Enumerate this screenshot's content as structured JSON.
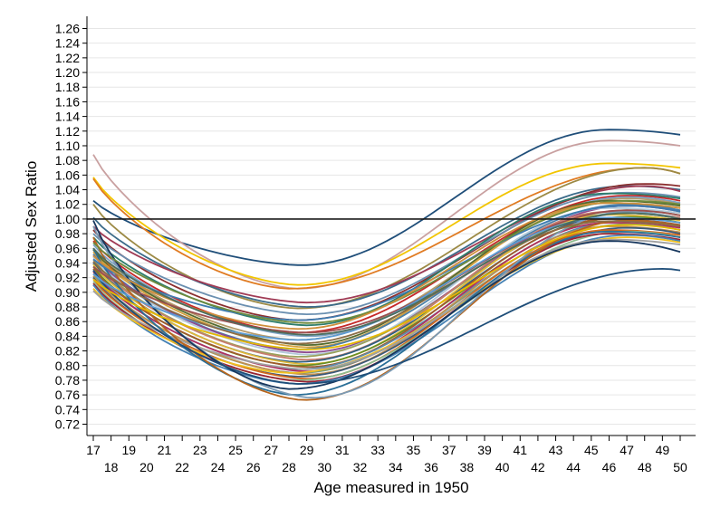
{
  "chart_data": {
    "type": "line",
    "title": "",
    "xlabel": "Age measured in 1950",
    "ylabel": "Adjusted Sex Ratio",
    "xlim": [
      17,
      50
    ],
    "ylim": [
      0.72,
      1.26
    ],
    "x_ticks": [
      17,
      18,
      19,
      20,
      21,
      22,
      23,
      24,
      25,
      26,
      27,
      28,
      29,
      30,
      31,
      32,
      33,
      34,
      35,
      36,
      37,
      38,
      39,
      40,
      41,
      42,
      43,
      44,
      45,
      46,
      47,
      48,
      49,
      50
    ],
    "x_tick_labels": [
      "17",
      "18",
      "19",
      "20",
      "21",
      "22",
      "23",
      "24",
      "25",
      "26",
      "27",
      "28",
      "29",
      "30",
      "31",
      "32",
      "33",
      "34",
      "35",
      "36",
      "37",
      "38",
      "39",
      "40",
      "41",
      "42",
      "43",
      "44",
      "45",
      "46",
      "47",
      "48",
      "49",
      "50"
    ],
    "y_ticks": [
      0.72,
      0.74,
      0.76,
      0.78,
      0.8,
      0.82,
      0.84,
      0.86,
      0.88,
      0.9,
      0.92,
      0.94,
      0.96,
      0.98,
      1.0,
      1.02,
      1.04,
      1.06,
      1.08,
      1.1,
      1.12,
      1.14,
      1.16,
      1.18,
      1.2,
      1.22,
      1.24,
      1.26
    ],
    "y_tick_labels": [
      "0.72",
      "0.74",
      "0.76",
      "0.78",
      "0.80",
      "0.82",
      "0.84",
      "0.86",
      "0.88",
      "0.90",
      "0.92",
      "0.94",
      "0.96",
      "0.98",
      "1.00",
      "1.02",
      "1.04",
      "1.06",
      "1.08",
      "1.10",
      "1.12",
      "1.14",
      "1.16",
      "1.18",
      "1.20",
      "1.22",
      "1.24",
      "1.26"
    ],
    "reference_line": 1.0,
    "grid": "horizontal",
    "legend": "none",
    "series_count": 48,
    "series_params": [
      {
        "start": 1.025,
        "min": 0.937,
        "min_age": 28.7,
        "end": 1.115,
        "peak": 1.122,
        "peak_age": 46,
        "color": "#1f4e79"
      },
      {
        "start": 1.088,
        "min": 0.905,
        "min_age": 28.5,
        "end": 1.1,
        "peak": 1.107,
        "peak_age": 46,
        "color": "#c9a0a0"
      },
      {
        "start": 1.057,
        "min": 0.91,
        "min_age": 28.5,
        "end": 1.07,
        "peak": 1.076,
        "peak_age": 46,
        "color": "#f2c500"
      },
      {
        "start": 1.055,
        "min": 0.905,
        "min_age": 28.0,
        "end": 1.062,
        "peak": 1.07,
        "peak_age": 48,
        "color": "#e07b22"
      },
      {
        "start": 1.02,
        "min": 0.878,
        "min_age": 28.5,
        "end": 1.062,
        "peak": 1.07,
        "peak_age": 48,
        "color": "#9c8a45"
      },
      {
        "start": 1.002,
        "min": 0.88,
        "min_age": 29.0,
        "end": 1.04,
        "peak": 1.045,
        "peak_age": 47,
        "color": "#3b6b8a"
      },
      {
        "start": 0.99,
        "min": 0.886,
        "min_age": 29.0,
        "end": 1.038,
        "peak": 1.045,
        "peak_age": 48,
        "color": "#a03b55"
      },
      {
        "start": 0.985,
        "min": 0.862,
        "min_age": 28.5,
        "end": 1.045,
        "peak": 1.048,
        "peak_age": 48,
        "color": "#8b2f2f"
      },
      {
        "start": 0.98,
        "min": 0.87,
        "min_age": 29.0,
        "end": 1.03,
        "peak": 1.036,
        "peak_age": 47,
        "color": "#6a8fb0"
      },
      {
        "start": 0.975,
        "min": 0.855,
        "min_age": 29.0,
        "end": 1.028,
        "peak": 1.035,
        "peak_age": 46,
        "color": "#2e7d6b"
      },
      {
        "start": 0.97,
        "min": 0.845,
        "min_age": 28.5,
        "end": 1.025,
        "peak": 1.032,
        "peak_age": 47,
        "color": "#c62828"
      },
      {
        "start": 0.965,
        "min": 0.84,
        "min_age": 29.0,
        "end": 1.022,
        "peak": 1.03,
        "peak_age": 47,
        "color": "#7da3c5"
      },
      {
        "start": 0.96,
        "min": 0.835,
        "min_age": 28.5,
        "end": 1.02,
        "peak": 1.028,
        "peak_age": 47,
        "color": "#b59a6a"
      },
      {
        "start": 0.958,
        "min": 0.828,
        "min_age": 29.0,
        "end": 1.018,
        "peak": 1.025,
        "peak_age": 46,
        "color": "#556b2f"
      },
      {
        "start": 0.955,
        "min": 0.825,
        "min_age": 29.0,
        "end": 1.015,
        "peak": 1.022,
        "peak_age": 46,
        "color": "#d4a03a"
      },
      {
        "start": 0.952,
        "min": 0.822,
        "min_age": 28.5,
        "end": 1.012,
        "peak": 1.02,
        "peak_age": 47,
        "color": "#4a7fa8"
      },
      {
        "start": 0.95,
        "min": 0.818,
        "min_age": 29.0,
        "end": 1.01,
        "peak": 1.018,
        "peak_age": 47,
        "color": "#8e4a8e"
      },
      {
        "start": 0.948,
        "min": 0.815,
        "min_age": 29.0,
        "end": 1.008,
        "peak": 1.015,
        "peak_age": 46,
        "color": "#b2c9d9"
      },
      {
        "start": 0.945,
        "min": 0.812,
        "min_age": 28.5,
        "end": 1.005,
        "peak": 1.012,
        "peak_age": 47,
        "color": "#9aa05a"
      },
      {
        "start": 0.942,
        "min": 0.808,
        "min_age": 29.0,
        "end": 1.002,
        "peak": 1.01,
        "peak_age": 46,
        "color": "#c77d6e"
      },
      {
        "start": 0.94,
        "min": 0.805,
        "min_age": 28.5,
        "end": 1.0,
        "peak": 1.008,
        "peak_age": 47,
        "color": "#2f5f7f"
      },
      {
        "start": 0.938,
        "min": 0.802,
        "min_age": 29.0,
        "end": 0.998,
        "peak": 1.006,
        "peak_age": 46,
        "color": "#e0b83a"
      },
      {
        "start": 0.935,
        "min": 0.8,
        "min_age": 28.5,
        "end": 0.995,
        "peak": 1.003,
        "peak_age": 47,
        "color": "#6b8e23"
      },
      {
        "start": 0.932,
        "min": 0.798,
        "min_age": 29.0,
        "end": 0.992,
        "peak": 1.0,
        "peak_age": 46,
        "color": "#a05a2c"
      },
      {
        "start": 0.93,
        "min": 0.795,
        "min_age": 28.5,
        "end": 0.99,
        "peak": 0.998,
        "peak_age": 47,
        "color": "#5d8aa8"
      },
      {
        "start": 0.928,
        "min": 0.792,
        "min_age": 29.0,
        "end": 0.988,
        "peak": 0.995,
        "peak_age": 46,
        "color": "#b03060"
      },
      {
        "start": 0.925,
        "min": 0.79,
        "min_age": 28.5,
        "end": 0.985,
        "peak": 0.993,
        "peak_age": 47,
        "color": "#7a9a7a"
      },
      {
        "start": 0.922,
        "min": 0.788,
        "min_age": 29.0,
        "end": 0.982,
        "peak": 0.99,
        "peak_age": 46,
        "color": "#c09050"
      },
      {
        "start": 0.92,
        "min": 0.785,
        "min_age": 28.5,
        "end": 0.98,
        "peak": 0.988,
        "peak_age": 47,
        "color": "#3c5a78"
      },
      {
        "start": 0.918,
        "min": 0.782,
        "min_age": 29.0,
        "end": 0.978,
        "peak": 0.985,
        "peak_age": 46,
        "color": "#d2691e"
      },
      {
        "start": 0.915,
        "min": 0.78,
        "min_age": 28.5,
        "end": 0.975,
        "peak": 0.983,
        "peak_age": 47,
        "color": "#8fbc8f"
      },
      {
        "start": 0.912,
        "min": 0.778,
        "min_age": 29.0,
        "end": 0.972,
        "peak": 0.98,
        "peak_age": 46,
        "color": "#9b2335"
      },
      {
        "start": 0.91,
        "min": 0.775,
        "min_age": 28.5,
        "end": 0.97,
        "peak": 0.978,
        "peak_age": 47,
        "color": "#4682b4"
      },
      {
        "start": 0.905,
        "min": 0.79,
        "min_age": 28.0,
        "end": 0.968,
        "peak": 0.975,
        "peak_age": 47,
        "color": "#f0c020"
      },
      {
        "start": 0.902,
        "min": 0.795,
        "min_age": 29.0,
        "end": 0.965,
        "peak": 0.972,
        "peak_age": 46,
        "color": "#a0a0a0"
      },
      {
        "start": 0.96,
        "min": 0.76,
        "min_age": 28.3,
        "end": 0.975,
        "peak": 0.983,
        "peak_age": 46,
        "color": "#2a6f97"
      },
      {
        "start": 0.975,
        "min": 0.753,
        "min_age": 28.8,
        "end": 0.99,
        "peak": 0.998,
        "peak_age": 47,
        "color": "#b5651d"
      },
      {
        "start": 0.99,
        "min": 0.756,
        "min_age": 29.3,
        "end": 1.0,
        "peak": 1.01,
        "peak_age": 47,
        "color": "#7b9bb5"
      },
      {
        "start": 0.998,
        "min": 0.768,
        "min_age": 28.0,
        "end": 0.955,
        "peak": 0.97,
        "peak_age": 46,
        "color": "#17375e"
      },
      {
        "start": 0.93,
        "min": 0.775,
        "min_age": 28.5,
        "end": 0.93,
        "peak": 0.932,
        "peak_age": 49,
        "color": "#1f4e79"
      },
      {
        "start": 0.945,
        "min": 0.862,
        "min_age": 28.5,
        "end": 1.01,
        "peak": 1.018,
        "peak_age": 47,
        "color": "#3e7cb1"
      },
      {
        "start": 0.968,
        "min": 0.858,
        "min_age": 29.0,
        "end": 1.02,
        "peak": 1.025,
        "peak_age": 47,
        "color": "#6e8b3d"
      },
      {
        "start": 0.95,
        "min": 0.85,
        "min_age": 28.5,
        "end": 1.015,
        "peak": 1.022,
        "peak_age": 46,
        "color": "#cf8e3a"
      },
      {
        "start": 0.935,
        "min": 0.845,
        "min_age": 29.0,
        "end": 1.005,
        "peak": 1.012,
        "peak_age": 47,
        "color": "#9c4f4f"
      },
      {
        "start": 0.925,
        "min": 0.835,
        "min_age": 28.5,
        "end": 0.995,
        "peak": 1.002,
        "peak_age": 46,
        "color": "#5b9bd5"
      },
      {
        "start": 0.918,
        "min": 0.822,
        "min_age": 29.0,
        "end": 0.985,
        "peak": 0.992,
        "peak_age": 47,
        "color": "#e6b800"
      },
      {
        "start": 0.942,
        "min": 0.83,
        "min_age": 28.5,
        "end": 0.99,
        "peak": 0.997,
        "peak_age": 46,
        "color": "#8c6d46"
      },
      {
        "start": 0.96,
        "min": 0.842,
        "min_age": 29.0,
        "end": 1.0,
        "peak": 1.008,
        "peak_age": 47,
        "color": "#4c6e5d"
      }
    ]
  }
}
